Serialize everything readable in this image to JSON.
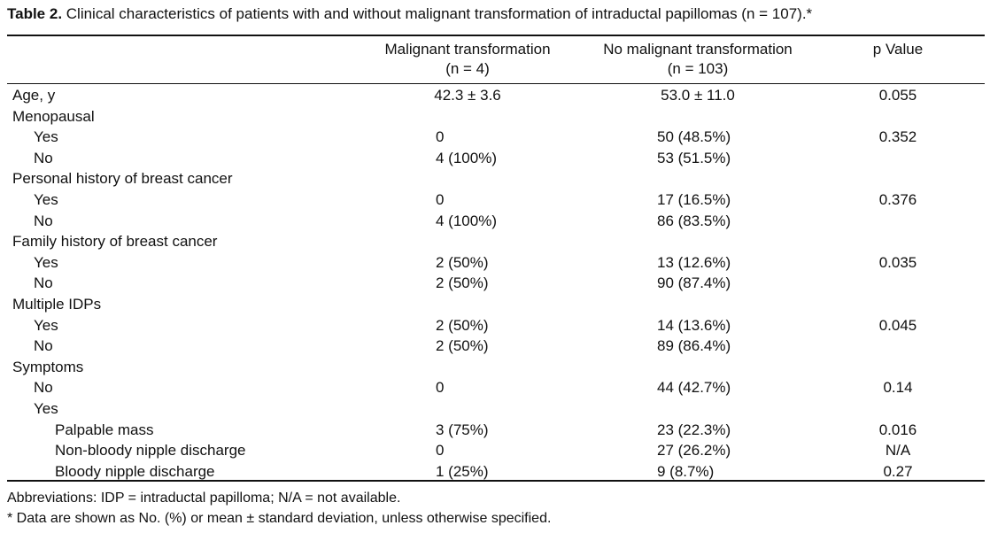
{
  "caption": {
    "label": "Table 2.",
    "text": " Clinical characteristics of patients with and without malignant transformation of intraductal papillomas (n = 107).*"
  },
  "header": {
    "mt_line1": "Malignant transformation",
    "mt_line2": "(n = 4)",
    "nmt_line1": "No malignant transformation",
    "nmt_line2": "(n = 103)",
    "p": "p Value"
  },
  "rows": [
    {
      "label": "Age, y",
      "indent": 0,
      "mt": "42.3 ± 3.6",
      "nmt": "53.0 ± 11.0",
      "p": "0.055"
    },
    {
      "label": "Menopausal",
      "indent": 0,
      "mt": "",
      "nmt": "",
      "p": ""
    },
    {
      "label": "Yes",
      "indent": 1,
      "mt": "0",
      "nmt": "50 (48.5%)",
      "p": "0.352"
    },
    {
      "label": "No",
      "indent": 1,
      "mt": "4 (100%)",
      "nmt": "53 (51.5%)",
      "p": ""
    },
    {
      "label": "Personal history of breast cancer",
      "indent": 0,
      "mt": "",
      "nmt": "",
      "p": ""
    },
    {
      "label": "Yes",
      "indent": 1,
      "mt": "0",
      "nmt": "17 (16.5%)",
      "p": "0.376"
    },
    {
      "label": "No",
      "indent": 1,
      "mt": "4 (100%)",
      "nmt": "86 (83.5%)",
      "p": ""
    },
    {
      "label": "Family history of breast cancer",
      "indent": 0,
      "mt": "",
      "nmt": "",
      "p": ""
    },
    {
      "label": "Yes",
      "indent": 1,
      "mt": "2 (50%)",
      "nmt": "13 (12.6%)",
      "p": "0.035"
    },
    {
      "label": "No",
      "indent": 1,
      "mt": "2 (50%)",
      "nmt": "90 (87.4%)",
      "p": ""
    },
    {
      "label": "Multiple IDPs",
      "indent": 0,
      "mt": "",
      "nmt": "",
      "p": ""
    },
    {
      "label": "Yes",
      "indent": 1,
      "mt": "2 (50%)",
      "nmt": "14 (13.6%)",
      "p": "0.045"
    },
    {
      "label": "No",
      "indent": 1,
      "mt": "2 (50%)",
      "nmt": "89 (86.4%)",
      "p": ""
    },
    {
      "label": "Symptoms",
      "indent": 0,
      "mt": "",
      "nmt": "",
      "p": ""
    },
    {
      "label": "No",
      "indent": 1,
      "mt": "0",
      "nmt": "44 (42.7%)",
      "p": "0.14"
    },
    {
      "label": "Yes",
      "indent": 1,
      "mt": "",
      "nmt": "",
      "p": ""
    },
    {
      "label": "Palpable mass",
      "indent": 2,
      "mt": "3 (75%)",
      "nmt": "23 (22.3%)",
      "p": "0.016"
    },
    {
      "label": "Non-bloody nipple discharge",
      "indent": 2,
      "mt": "0",
      "nmt": "27 (26.2%)",
      "p": "N/A"
    },
    {
      "label": "Bloody nipple discharge",
      "indent": 2,
      "mt": "1 (25%)",
      "nmt": "9 (8.7%)",
      "p": "0.27"
    }
  ],
  "footnotes": {
    "abbreviations": "Abbreviations: IDP = intraductal papilloma; N/A = not available.",
    "note": "* Data are shown as No. (%) or mean ± standard deviation, unless otherwise specified."
  }
}
